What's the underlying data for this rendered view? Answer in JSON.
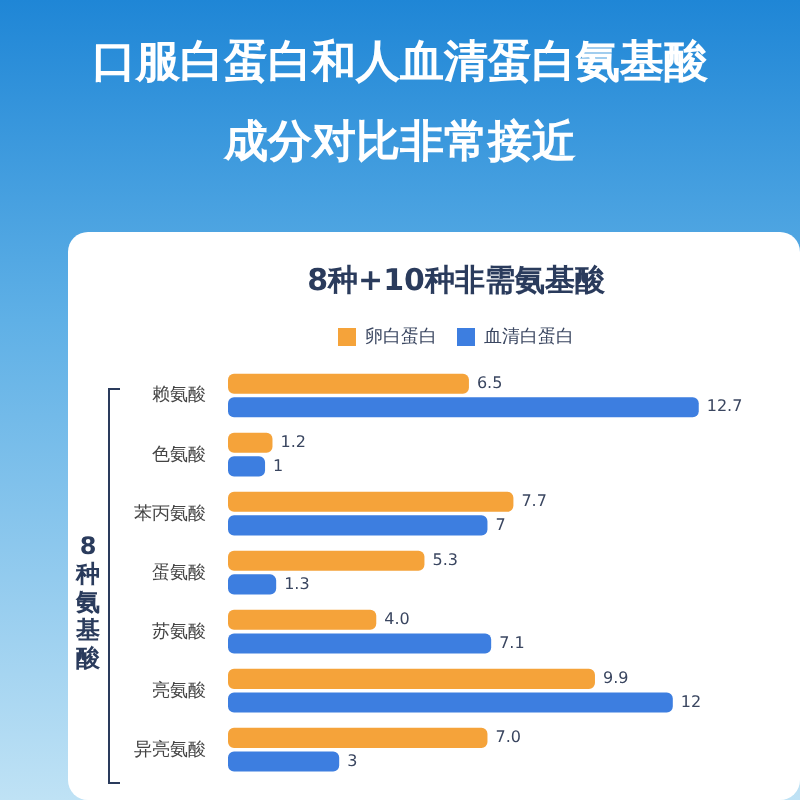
{
  "chart_data": {
    "type": "bar",
    "orientation": "horizontal",
    "title": "8种+10种非需氨基酸",
    "subtitle": "口服白蛋白和人血清蛋白氨基酸成分对比非常接近",
    "categories": [
      "赖氨酸",
      "色氨酸",
      "苯丙氨酸",
      "蛋氨酸",
      "苏氨酸",
      "亮氨酸",
      "异亮氨酸"
    ],
    "series": [
      {
        "name": "卵白蛋白",
        "color": "#f5a33a",
        "values": [
          6.5,
          1.2,
          7.7,
          5.3,
          4.0,
          9.9,
          7.0
        ],
        "value_labels": [
          "6.5",
          "1.2",
          "7.7",
          "5.3",
          "4.0",
          "9.9",
          "7.0"
        ]
      },
      {
        "name": "血清白蛋白",
        "color": "#3d7ee0",
        "values": [
          12.7,
          1,
          7,
          1.3,
          7.1,
          12,
          3
        ],
        "value_labels": [
          "12.7",
          "1",
          "7",
          "1.3",
          "7.1",
          "12",
          "3"
        ]
      }
    ],
    "annotations": [
      "8种氨基酸"
    ],
    "legend": "top",
    "grid": false
  }
}
